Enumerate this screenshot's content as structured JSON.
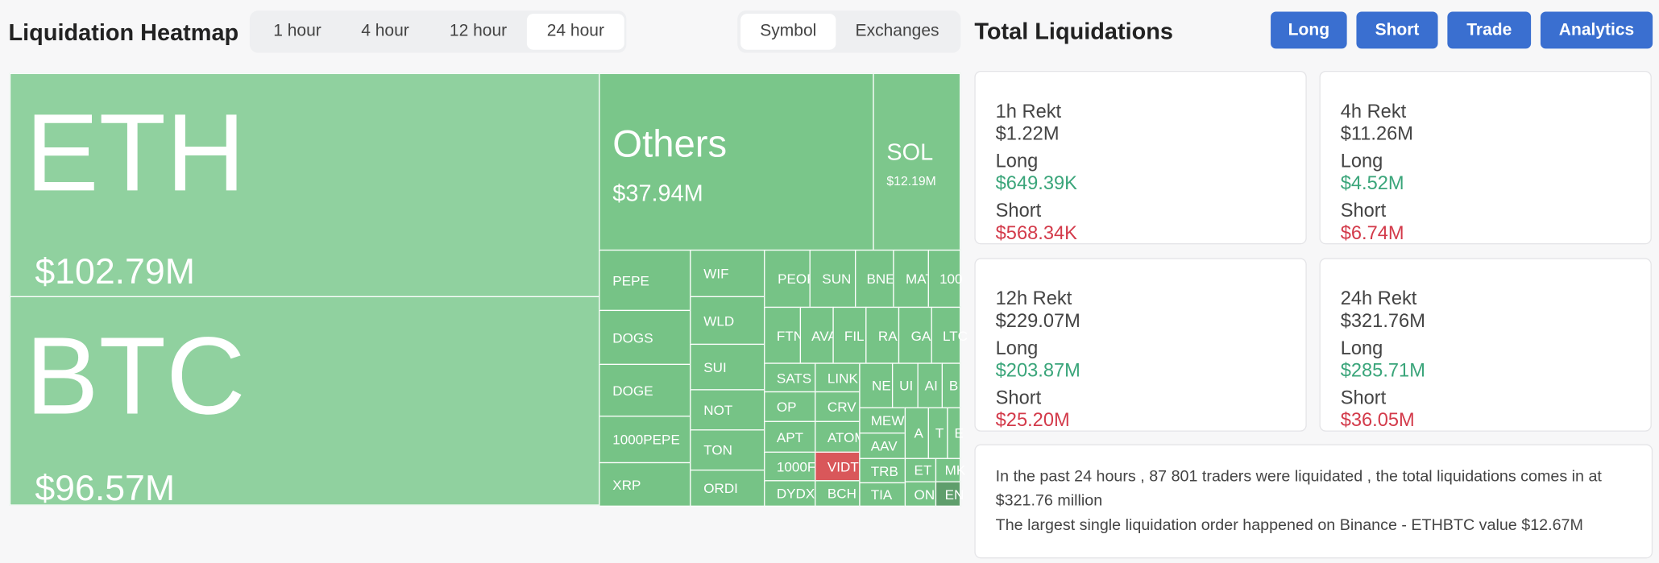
{
  "header": {
    "title": "Liquidation Heatmap",
    "time_tabs": [
      "1 hour",
      "4 hour",
      "12 hour",
      "24 hour"
    ],
    "view_tabs": [
      "Symbol",
      "Exchanges"
    ]
  },
  "heatmap": {
    "tiles": [
      {
        "label": "ETH",
        "value": "$102.79M"
      },
      {
        "label": "BTC",
        "value": "$96.57M"
      },
      {
        "label": "Others",
        "value": "$37.94M"
      },
      {
        "label": "SOL",
        "value": "$12.19M"
      },
      {
        "label": "PEPE"
      },
      {
        "label": "DOGS"
      },
      {
        "label": "DOGE"
      },
      {
        "label": "1000PEPE"
      },
      {
        "label": "XRP"
      },
      {
        "label": "WIF"
      },
      {
        "label": "WLD"
      },
      {
        "label": "SUI"
      },
      {
        "label": "NOT"
      },
      {
        "label": "TON"
      },
      {
        "label": "ORDI"
      },
      {
        "label": "PEOP"
      },
      {
        "label": "SUN"
      },
      {
        "label": "BNE"
      },
      {
        "label": "MAT"
      },
      {
        "label": "100"
      },
      {
        "label": "FTN"
      },
      {
        "label": "AVA"
      },
      {
        "label": "FIL"
      },
      {
        "label": "RA"
      },
      {
        "label": "GA"
      },
      {
        "label": "LTC"
      },
      {
        "label": "SATS"
      },
      {
        "label": "OP"
      },
      {
        "label": "APT"
      },
      {
        "label": "1000F"
      },
      {
        "label": "DYDX"
      },
      {
        "label": "LINK"
      },
      {
        "label": "CRV"
      },
      {
        "label": "ATOM"
      },
      {
        "label": "VIDT"
      },
      {
        "label": "BCH"
      },
      {
        "label": "NE"
      },
      {
        "label": "UI"
      },
      {
        "label": "AI"
      },
      {
        "label": "B"
      },
      {
        "label": "MEW"
      },
      {
        "label": "AAV"
      },
      {
        "label": "A"
      },
      {
        "label": "T"
      },
      {
        "label": "E"
      },
      {
        "label": "TRB"
      },
      {
        "label": "TIA"
      },
      {
        "label": "ET"
      },
      {
        "label": "MK"
      },
      {
        "label": "ON"
      },
      {
        "label": "EN"
      }
    ]
  },
  "summary": {
    "title": "Total Liquidations",
    "buttons": [
      "Long",
      "Short",
      "Trade",
      "Analytics"
    ],
    "cards": [
      {
        "title": "1h Rekt",
        "total": "$1.22M",
        "rows": [
          {
            "label": "Long",
            "value": "$649.39K"
          },
          {
            "label": "Short",
            "value": "$568.34K"
          }
        ]
      },
      {
        "title": "4h Rekt",
        "total": "$11.26M",
        "rows": [
          {
            "label": "Long",
            "value": "$4.52M"
          },
          {
            "label": "Short",
            "value": "$6.74M"
          }
        ]
      },
      {
        "title": "12h Rekt",
        "total": "$229.07M",
        "rows": [
          {
            "label": "Long",
            "value": "$203.87M"
          },
          {
            "label": "Short",
            "value": "$25.20M"
          }
        ]
      },
      {
        "title": "24h Rekt",
        "total": "$321.76M",
        "rows": [
          {
            "label": "Long",
            "value": "$285.71M"
          },
          {
            "label": "Short",
            "value": "$36.05M"
          }
        ]
      }
    ],
    "note": [
      "In the past 24 hours , 87 801 traders were liquidated , the total liquidations comes in at $321.76 million",
      "The largest single liquidation order happened on Binance - ETHBTC value $12.67M"
    ]
  }
}
